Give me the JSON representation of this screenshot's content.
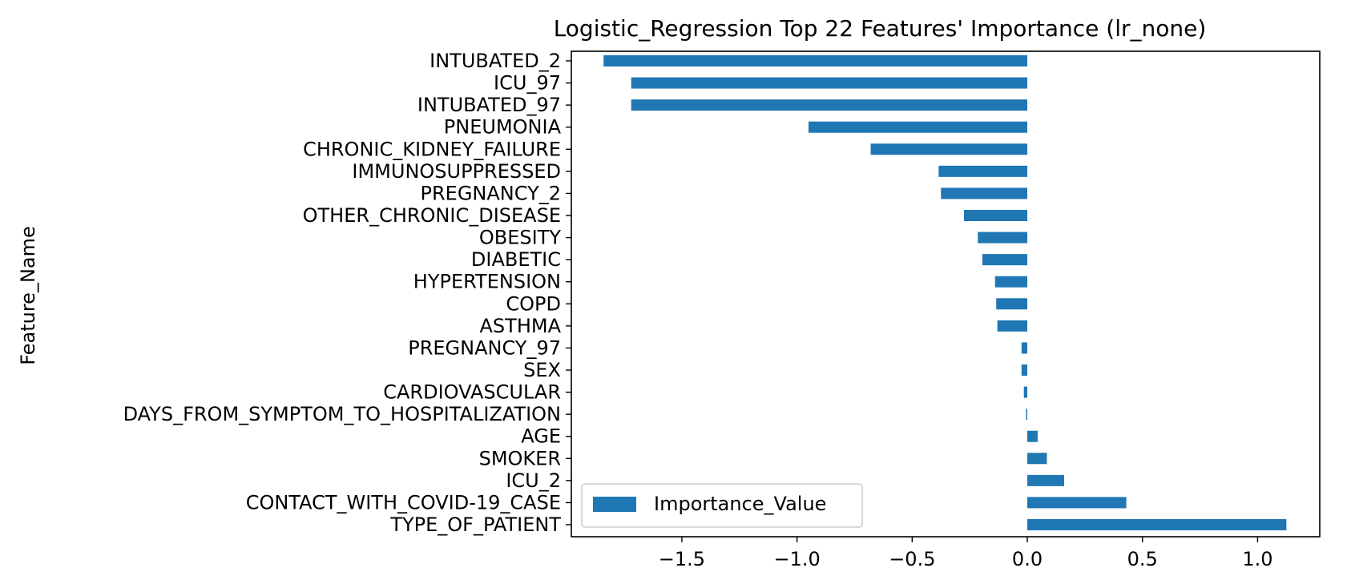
{
  "chart_data": {
    "type": "bar",
    "orientation": "horizontal",
    "title": "Logistic_Regression Top 22 Features' Importance (lr_none)",
    "xlabel": "",
    "ylabel": "Feature_Name",
    "xlim": [
      -1.98,
      1.27
    ],
    "xticks": [
      {
        "value": -1.5,
        "label": "−1.5"
      },
      {
        "value": -1.0,
        "label": "−1.0"
      },
      {
        "value": -0.5,
        "label": "−0.5"
      },
      {
        "value": 0.0,
        "label": "0.0"
      },
      {
        "value": 0.5,
        "label": "0.5"
      },
      {
        "value": 1.0,
        "label": "1.0"
      }
    ],
    "categories": [
      "INTUBATED_2",
      "ICU_97",
      "INTUBATED_97",
      "PNEUMONIA",
      "CHRONIC_KIDNEY_FAILURE",
      "IMMUNOSUPPRESSED",
      "PREGNANCY_2",
      "OTHER_CHRONIC_DISEASE",
      "OBESITY",
      "DIABETIC",
      "HYPERTENSION",
      "COPD",
      "ASTHMA",
      "PREGNANCY_97",
      "SEX",
      "CARDIOVASCULAR",
      "DAYS_FROM_SYMPTOM_TO_HOSPITALIZATION",
      "AGE",
      "SMOKER",
      "ICU_2",
      "CONTACT_WITH_COVID-19_CASE",
      "TYPE_OF_PATIENT"
    ],
    "series": [
      {
        "name": "Importance_Value",
        "color": "#1f77b4",
        "values": [
          -1.84,
          -1.72,
          -1.72,
          -0.95,
          -0.68,
          -0.385,
          -0.375,
          -0.275,
          -0.215,
          -0.195,
          -0.14,
          -0.135,
          -0.13,
          -0.025,
          -0.025,
          -0.015,
          -0.005,
          0.045,
          0.085,
          0.16,
          0.43,
          1.125
        ]
      }
    ],
    "legend": {
      "position": "lower-left",
      "label": "Importance_Value"
    },
    "grid": false
  }
}
